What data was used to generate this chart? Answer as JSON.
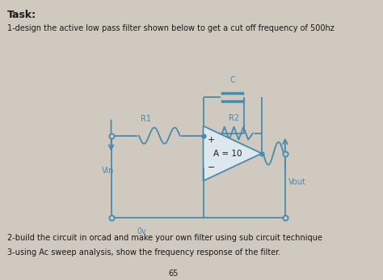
{
  "title": "Task:",
  "line1": "1-design the active low pass filter shown below to get a cut off frequency of 500hz",
  "line2": "2-build the circuit in orcad and make your own filter using sub circuit technique",
  "line3": "3-using Ac sweep analysis, show the frequency response of the filter.",
  "page_num": "65",
  "bg_color": "#cfc9c0",
  "text_color": "#1a1a1a",
  "circuit_color": "#4a8aaa",
  "label_R1": "R1",
  "label_R2": "R2",
  "label_C": "C",
  "label_A": "A = 10",
  "label_Vin": "Vin",
  "label_Vout": "Vout",
  "label_0v": "0v"
}
